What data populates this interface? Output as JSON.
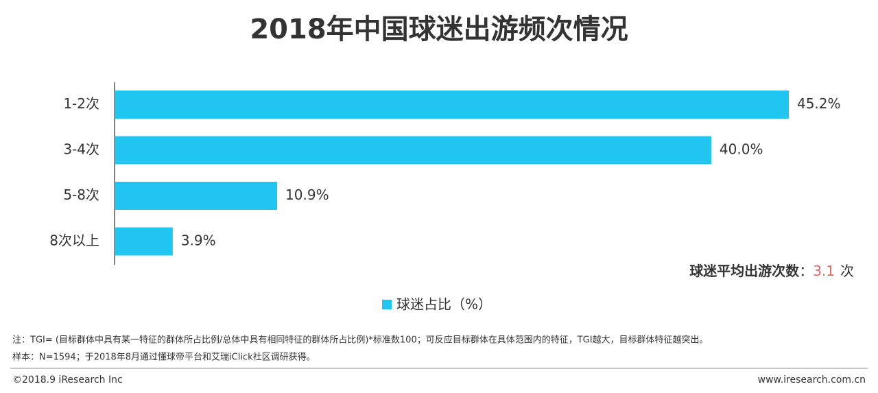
{
  "chart_data": {
    "type": "bar",
    "orientation": "horizontal",
    "title": "2018年中国球迷出游频次情况",
    "categories": [
      "1-2次",
      "3-4次",
      "5-8次",
      "8次以上"
    ],
    "series": [
      {
        "name": "球迷占比（%）",
        "color": "#21c6f0",
        "values": [
          45.2,
          40.0,
          10.9,
          3.9
        ],
        "value_labels": [
          "45.2%",
          "40.0%",
          "10.9%",
          "3.9%"
        ]
      }
    ],
    "annotation": {
      "label": "球迷平均出游次数",
      "separator": "：",
      "value": 3.1,
      "unit": "次"
    },
    "notes": [
      "注：TGI= (目标群体中具有某一特征的群体所占比例/总体中具有相同特征的群体所占比例)*标准数100；可反应目标群体在具体范围内的特征，TGI越大，目标群体特征越突出。",
      "样本：N=1594；于2018年8月通过懂球帝平台和艾瑞iClick社区调研获得。"
    ],
    "footer": {
      "left": "©2018.9 iResearch Inc",
      "right": "www.iresearch.com.cn"
    }
  }
}
